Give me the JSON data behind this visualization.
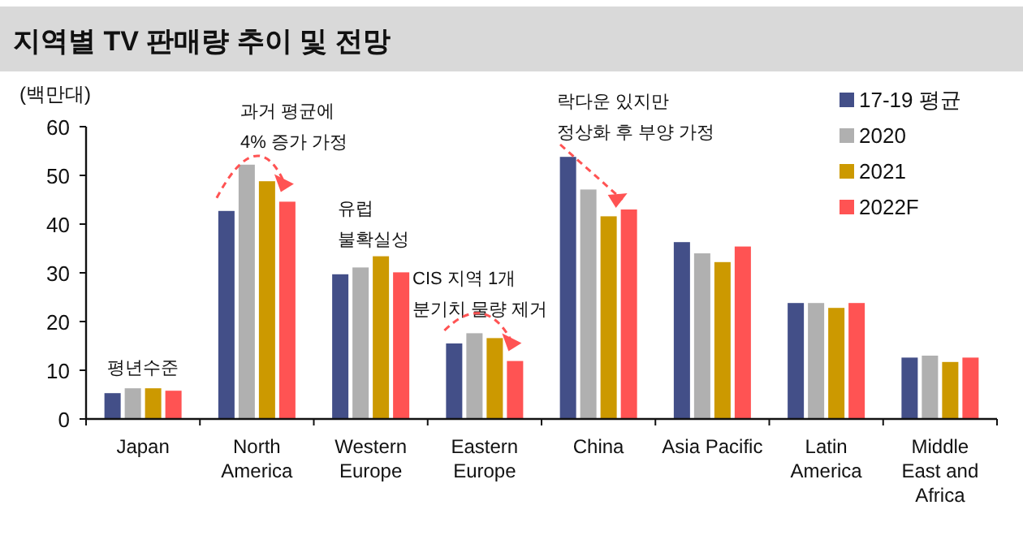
{
  "chart_data": {
    "type": "bar",
    "title": "지역별 TV 판매량 추이 및 전망",
    "ylabel": "(백만대)",
    "categories": [
      "Japan",
      "North\nAmerica",
      "Western\nEurope",
      "Eastern\nEurope",
      "China",
      "Asia Pacific",
      "Latin\nAmerica",
      "Middle\nEast and\nAfrica"
    ],
    "series": [
      {
        "name": "17-19 평균",
        "color": "#434f88",
        "values": [
          5.3,
          42.7,
          29.7,
          15.5,
          53.8,
          36.3,
          23.8,
          12.6
        ]
      },
      {
        "name": "2020",
        "color": "#b0b0b0",
        "values": [
          6.3,
          52.2,
          31.1,
          17.6,
          47.1,
          34.0,
          23.8,
          13.0
        ]
      },
      {
        "name": "2021",
        "color": "#cc9900",
        "values": [
          6.3,
          48.8,
          33.4,
          16.6,
          41.6,
          32.2,
          22.8,
          11.7
        ]
      },
      {
        "name": "2022F",
        "color": "#ff5353",
        "values": [
          5.8,
          44.6,
          30.1,
          11.9,
          43.0,
          35.4,
          23.8,
          12.6
        ]
      }
    ],
    "ylim": [
      0,
      60
    ],
    "yticks": [
      0,
      10,
      20,
      30,
      40,
      50,
      60
    ],
    "grid": false,
    "legend": "top right",
    "annotations": [
      "평년수준",
      "과거 평균에\n4% 증가 가정",
      "유럽\n불확실성",
      "CIS 지역 1개\n분기치 물량 제거",
      "락다운 있지만\n정상화 후 부양 가정"
    ]
  }
}
